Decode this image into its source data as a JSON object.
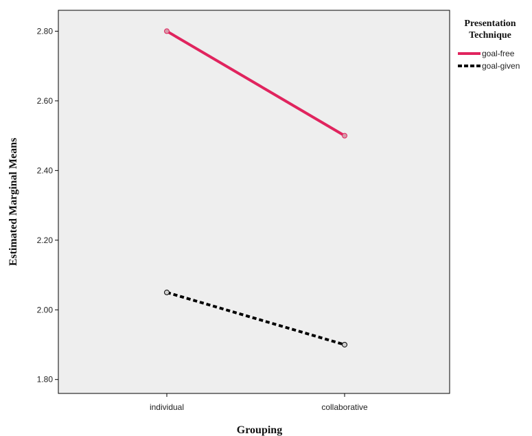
{
  "chart_data": {
    "type": "line",
    "title": "",
    "xlabel": "Grouping",
    "ylabel": "Estimated Marginal Means",
    "categories": [
      "individual",
      "collaborative"
    ],
    "ylim": [
      1.76,
      2.86
    ],
    "yticks": [
      "1.80",
      "2.00",
      "2.20",
      "2.40",
      "2.60",
      "2.80"
    ],
    "legend": {
      "title_line1": "Presentation",
      "title_line2": "Technique",
      "placement": "right"
    },
    "series": [
      {
        "name": "goal-free",
        "values": [
          2.8,
          2.5
        ],
        "color": "#e0245e",
        "style": "solid"
      },
      {
        "name": "goal-given",
        "values": [
          2.05,
          1.9
        ],
        "color": "#000000",
        "style": "dashed"
      }
    ],
    "plot_background": "#eeeeee",
    "grid": false
  }
}
